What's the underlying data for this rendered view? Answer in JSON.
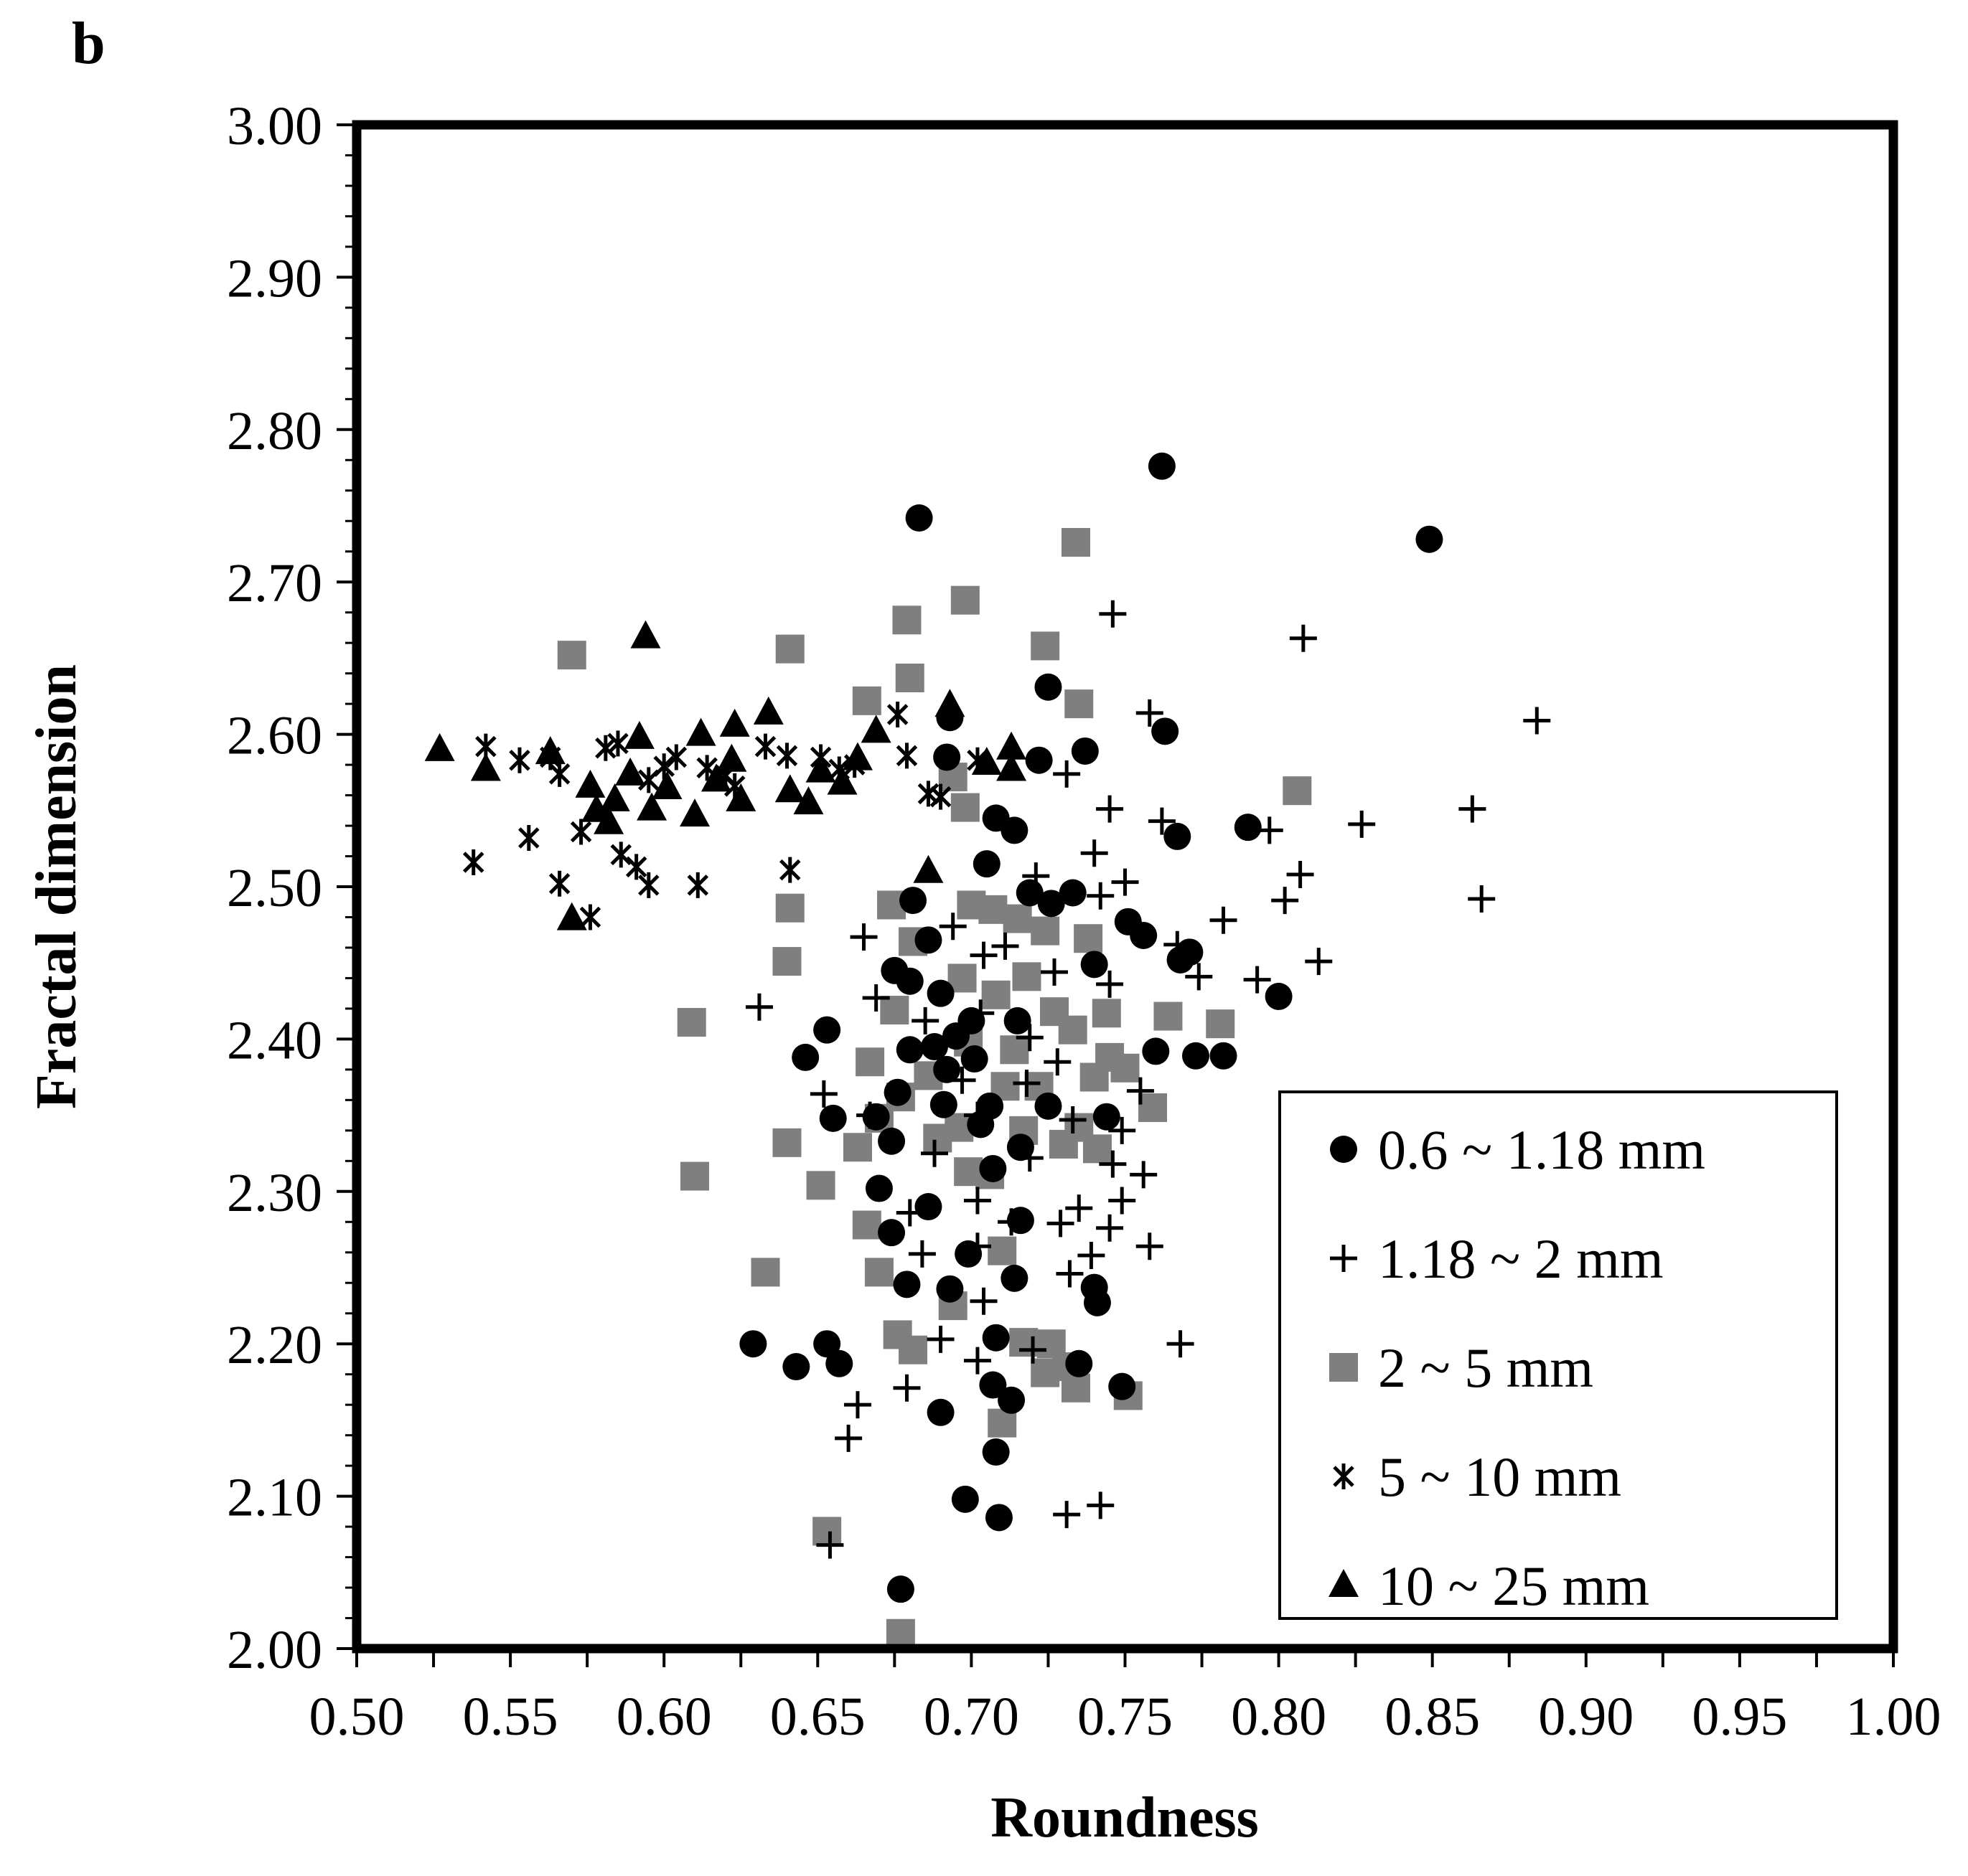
{
  "panel_label": "b",
  "chart_data": {
    "type": "scatter",
    "title": "",
    "xlabel": "Roundness",
    "ylabel": "Fractal dimension",
    "xlim": [
      0.5,
      1.0
    ],
    "ylim": [
      2.0,
      3.0
    ],
    "x_ticks": [
      "0.50",
      "0.55",
      "0.60",
      "0.65",
      "0.70",
      "0.75",
      "0.80",
      "0.85",
      "0.90",
      "0.95",
      "1.00"
    ],
    "y_ticks": [
      "2.00",
      "2.10",
      "2.20",
      "2.30",
      "2.40",
      "2.50",
      "2.60",
      "2.70",
      "2.80",
      "2.90",
      "3.00"
    ],
    "grid": false,
    "legend_position": "bottom-right",
    "series": [
      {
        "name": "0.6 ~ 1.18 mm",
        "marker": "circle",
        "color": "#000000",
        "points": [
          [
            0.683,
            2.742
          ],
          [
            0.762,
            2.776
          ],
          [
            0.849,
            2.728
          ],
          [
            0.725,
            2.631
          ],
          [
            0.693,
            2.611
          ],
          [
            0.763,
            2.602
          ],
          [
            0.737,
            2.589
          ],
          [
            0.722,
            2.583
          ],
          [
            0.692,
            2.585
          ],
          [
            0.708,
            2.545
          ],
          [
            0.714,
            2.537
          ],
          [
            0.767,
            2.533
          ],
          [
            0.79,
            2.539
          ],
          [
            0.705,
            2.515
          ],
          [
            0.719,
            2.496
          ],
          [
            0.726,
            2.489
          ],
          [
            0.733,
            2.496
          ],
          [
            0.681,
            2.491
          ],
          [
            0.751,
            2.477
          ],
          [
            0.756,
            2.468
          ],
          [
            0.74,
            2.449
          ],
          [
            0.771,
            2.457
          ],
          [
            0.686,
            2.465
          ],
          [
            0.768,
            2.452
          ],
          [
            0.675,
            2.445
          ],
          [
            0.68,
            2.438
          ],
          [
            0.69,
            2.43
          ],
          [
            0.7,
            2.412
          ],
          [
            0.695,
            2.402
          ],
          [
            0.688,
            2.395
          ],
          [
            0.68,
            2.393
          ],
          [
            0.692,
            2.38
          ],
          [
            0.701,
            2.387
          ],
          [
            0.715,
            2.412
          ],
          [
            0.8,
            2.428
          ],
          [
            0.76,
            2.392
          ],
          [
            0.773,
            2.389
          ],
          [
            0.782,
            2.389
          ],
          [
            0.653,
            2.406
          ],
          [
            0.646,
            2.388
          ],
          [
            0.676,
            2.365
          ],
          [
            0.669,
            2.349
          ],
          [
            0.655,
            2.348
          ],
          [
            0.691,
            2.357
          ],
          [
            0.706,
            2.356
          ],
          [
            0.703,
            2.344
          ],
          [
            0.725,
            2.356
          ],
          [
            0.744,
            2.349
          ],
          [
            0.674,
            2.333
          ],
          [
            0.716,
            2.329
          ],
          [
            0.707,
            2.315
          ],
          [
            0.67,
            2.302
          ],
          [
            0.686,
            2.29
          ],
          [
            0.674,
            2.273
          ],
          [
            0.716,
            2.281
          ],
          [
            0.699,
            2.259
          ],
          [
            0.679,
            2.239
          ],
          [
            0.693,
            2.236
          ],
          [
            0.714,
            2.243
          ],
          [
            0.74,
            2.237
          ],
          [
            0.741,
            2.227
          ],
          [
            0.629,
            2.2
          ],
          [
            0.643,
            2.185
          ],
          [
            0.653,
            2.2
          ],
          [
            0.657,
            2.187
          ],
          [
            0.708,
            2.204
          ],
          [
            0.735,
            2.187
          ],
          [
            0.749,
            2.172
          ],
          [
            0.69,
            2.155
          ],
          [
            0.707,
            2.173
          ],
          [
            0.713,
            2.163
          ],
          [
            0.708,
            2.129
          ],
          [
            0.698,
            2.098
          ],
          [
            0.709,
            2.086
          ],
          [
            0.677,
            2.039
          ]
        ]
      },
      {
        "name": "1.18 ~ 2 mm",
        "marker": "plus",
        "color": "#000000",
        "points": [
          [
            0.746,
            2.679
          ],
          [
            0.808,
            2.663
          ],
          [
            0.884,
            2.609
          ],
          [
            0.758,
            2.614
          ],
          [
            0.731,
            2.574
          ],
          [
            0.745,
            2.551
          ],
          [
            0.762,
            2.543
          ],
          [
            0.797,
            2.537
          ],
          [
            0.827,
            2.541
          ],
          [
            0.863,
            2.551
          ],
          [
            0.74,
            2.522
          ],
          [
            0.721,
            2.507
          ],
          [
            0.75,
            2.503
          ],
          [
            0.742,
            2.494
          ],
          [
            0.807,
            2.508
          ],
          [
            0.802,
            2.491
          ],
          [
            0.866,
            2.492
          ],
          [
            0.694,
            2.474
          ],
          [
            0.711,
            2.461
          ],
          [
            0.782,
            2.478
          ],
          [
            0.767,
            2.462
          ],
          [
            0.665,
            2.467
          ],
          [
            0.704,
            2.455
          ],
          [
            0.727,
            2.444
          ],
          [
            0.745,
            2.436
          ],
          [
            0.774,
            2.441
          ],
          [
            0.793,
            2.439
          ],
          [
            0.813,
            2.451
          ],
          [
            0.669,
            2.427
          ],
          [
            0.631,
            2.421
          ],
          [
            0.685,
            2.412
          ],
          [
            0.703,
            2.417
          ],
          [
            0.719,
            2.401
          ],
          [
            0.728,
            2.385
          ],
          [
            0.697,
            2.373
          ],
          [
            0.718,
            2.371
          ],
          [
            0.755,
            2.366
          ],
          [
            0.652,
            2.364
          ],
          [
            0.667,
            2.35
          ],
          [
            0.702,
            2.35
          ],
          [
            0.733,
            2.347
          ],
          [
            0.749,
            2.34
          ],
          [
            0.688,
            2.325
          ],
          [
            0.719,
            2.322
          ],
          [
            0.746,
            2.318
          ],
          [
            0.756,
            2.311
          ],
          [
            0.702,
            2.294
          ],
          [
            0.735,
            2.289
          ],
          [
            0.749,
            2.294
          ],
          [
            0.68,
            2.286
          ],
          [
            0.713,
            2.28
          ],
          [
            0.729,
            2.279
          ],
          [
            0.745,
            2.276
          ],
          [
            0.702,
            2.264
          ],
          [
            0.739,
            2.258
          ],
          [
            0.758,
            2.264
          ],
          [
            0.684,
            2.259
          ],
          [
            0.732,
            2.246
          ],
          [
            0.704,
            2.228
          ],
          [
            0.69,
            2.203
          ],
          [
            0.768,
            2.2
          ],
          [
            0.72,
            2.196
          ],
          [
            0.702,
            2.189
          ],
          [
            0.679,
            2.171
          ],
          [
            0.663,
            2.16
          ],
          [
            0.66,
            2.138
          ],
          [
            0.731,
            2.088
          ],
          [
            0.742,
            2.094
          ],
          [
            0.654,
            2.068
          ]
        ]
      },
      {
        "name": "2 ~ 5 mm",
        "marker": "square",
        "color": "#7f7f7f",
        "points": [
          [
            0.734,
            2.726
          ],
          [
            0.698,
            2.688
          ],
          [
            0.679,
            2.675
          ],
          [
            0.57,
            2.652
          ],
          [
            0.641,
            2.656
          ],
          [
            0.724,
            2.658
          ],
          [
            0.68,
            2.637
          ],
          [
            0.666,
            2.622
          ],
          [
            0.735,
            2.62
          ],
          [
            0.694,
            2.572
          ],
          [
            0.698,
            2.552
          ],
          [
            0.806,
            2.563
          ],
          [
            0.641,
            2.486
          ],
          [
            0.674,
            2.488
          ],
          [
            0.7,
            2.488
          ],
          [
            0.707,
            2.485
          ],
          [
            0.715,
            2.479
          ],
          [
            0.724,
            2.471
          ],
          [
            0.738,
            2.466
          ],
          [
            0.681,
            2.464
          ],
          [
            0.64,
            2.451
          ],
          [
            0.697,
            2.44
          ],
          [
            0.718,
            2.441
          ],
          [
            0.708,
            2.429
          ],
          [
            0.727,
            2.418
          ],
          [
            0.744,
            2.417
          ],
          [
            0.764,
            2.415
          ],
          [
            0.781,
            2.41
          ],
          [
            0.609,
            2.411
          ],
          [
            0.733,
            2.406
          ],
          [
            0.675,
            2.419
          ],
          [
            0.699,
            2.398
          ],
          [
            0.714,
            2.393
          ],
          [
            0.745,
            2.388
          ],
          [
            0.667,
            2.385
          ],
          [
            0.75,
            2.381
          ],
          [
            0.74,
            2.375
          ],
          [
            0.686,
            2.376
          ],
          [
            0.711,
            2.369
          ],
          [
            0.722,
            2.369
          ],
          [
            0.677,
            2.362
          ],
          [
            0.759,
            2.355
          ],
          [
            0.67,
            2.348
          ],
          [
            0.696,
            2.342
          ],
          [
            0.717,
            2.34
          ],
          [
            0.735,
            2.342
          ],
          [
            0.73,
            2.331
          ],
          [
            0.741,
            2.328
          ],
          [
            0.689,
            2.335
          ],
          [
            0.64,
            2.332
          ],
          [
            0.663,
            2.329
          ],
          [
            0.699,
            2.313
          ],
          [
            0.706,
            2.311
          ],
          [
            0.61,
            2.31
          ],
          [
            0.651,
            2.304
          ],
          [
            0.666,
            2.278
          ],
          [
            0.71,
            2.261
          ],
          [
            0.67,
            2.247
          ],
          [
            0.633,
            2.247
          ],
          [
            0.694,
            2.225
          ],
          [
            0.676,
            2.206
          ],
          [
            0.681,
            2.196
          ],
          [
            0.717,
            2.201
          ],
          [
            0.726,
            2.2
          ],
          [
            0.731,
            2.185
          ],
          [
            0.724,
            2.181
          ],
          [
            0.734,
            2.171
          ],
          [
            0.751,
            2.166
          ],
          [
            0.71,
            2.148
          ],
          [
            0.653,
            2.077
          ],
          [
            0.677,
            2.01
          ]
        ]
      },
      {
        "name": "5 ~ 10 mm",
        "marker": "asterisk",
        "color": "#000000",
        "points": [
          [
            0.542,
            2.592
          ],
          [
            0.553,
            2.583
          ],
          [
            0.563,
            2.585
          ],
          [
            0.566,
            2.574
          ],
          [
            0.585,
            2.594
          ],
          [
            0.581,
            2.591
          ],
          [
            0.595,
            2.57
          ],
          [
            0.6,
            2.579
          ],
          [
            0.604,
            2.585
          ],
          [
            0.614,
            2.578
          ],
          [
            0.62,
            2.573
          ],
          [
            0.623,
            2.566
          ],
          [
            0.633,
            2.592
          ],
          [
            0.64,
            2.586
          ],
          [
            0.651,
            2.585
          ],
          [
            0.657,
            2.577
          ],
          [
            0.662,
            2.58
          ],
          [
            0.676,
            2.613
          ],
          [
            0.679,
            2.586
          ],
          [
            0.686,
            2.561
          ],
          [
            0.69,
            2.559
          ],
          [
            0.702,
            2.583
          ],
          [
            0.538,
            2.516
          ],
          [
            0.556,
            2.532
          ],
          [
            0.573,
            2.536
          ],
          [
            0.586,
            2.521
          ],
          [
            0.591,
            2.513
          ],
          [
            0.595,
            2.501
          ],
          [
            0.566,
            2.502
          ],
          [
            0.576,
            2.48
          ],
          [
            0.611,
            2.501
          ],
          [
            0.641,
            2.511
          ]
        ]
      },
      {
        "name": "10 ~ 25 mm",
        "marker": "triangle",
        "color": "#000000",
        "points": [
          [
            0.594,
            2.664
          ],
          [
            0.527,
            2.59
          ],
          [
            0.542,
            2.577
          ],
          [
            0.563,
            2.588
          ],
          [
            0.576,
            2.566
          ],
          [
            0.578,
            2.55
          ],
          [
            0.582,
            2.542
          ],
          [
            0.584,
            2.557
          ],
          [
            0.589,
            2.574
          ],
          [
            0.592,
            2.598
          ],
          [
            0.596,
            2.551
          ],
          [
            0.601,
            2.565
          ],
          [
            0.61,
            2.547
          ],
          [
            0.612,
            2.6
          ],
          [
            0.617,
            2.57
          ],
          [
            0.622,
            2.583
          ],
          [
            0.625,
            2.557
          ],
          [
            0.623,
            2.606
          ],
          [
            0.634,
            2.614
          ],
          [
            0.641,
            2.563
          ],
          [
            0.647,
            2.555
          ],
          [
            0.651,
            2.576
          ],
          [
            0.658,
            2.568
          ],
          [
            0.663,
            2.584
          ],
          [
            0.669,
            2.602
          ],
          [
            0.693,
            2.619
          ],
          [
            0.705,
            2.581
          ],
          [
            0.713,
            2.591
          ],
          [
            0.713,
            2.577
          ],
          [
            0.686,
            2.51
          ],
          [
            0.57,
            2.479
          ]
        ]
      }
    ]
  }
}
